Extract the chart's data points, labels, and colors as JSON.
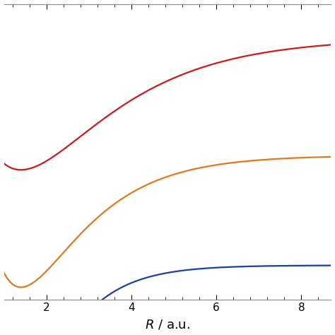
{
  "xlabel": "$R$ / a.u.",
  "xlim": [
    1.0,
    8.7
  ],
  "xticks": [
    2,
    4,
    6,
    8
  ],
  "background_color": "#ffffff",
  "line_colors": [
    "#1a3fa3",
    "#e07820",
    "#cc1a1a"
  ],
  "line_width": 1.6,
  "xlabel_fontsize": 13,
  "blue": {
    "De": 0.174,
    "Re": 1.401,
    "a": 1.028,
    "shift": 0.0
  },
  "orange": {
    "De": 0.174,
    "Re": 1.401,
    "a": 0.72,
    "shift": 0.145
  },
  "red": {
    "De": 0.174,
    "Re": 1.401,
    "a": 0.5,
    "shift": 0.3
  }
}
